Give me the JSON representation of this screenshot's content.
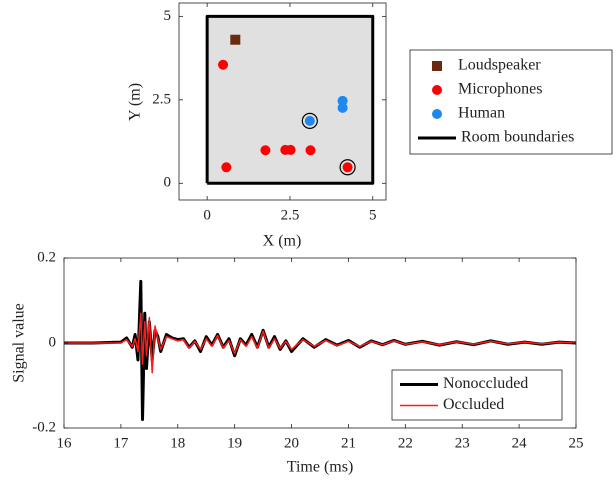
{
  "chart_data": [
    {
      "type": "scatter",
      "xlabel": "X (m)",
      "ylabel": "Y (m)",
      "xlim": [
        -0.85,
        5.4
      ],
      "ylim": [
        -0.5,
        5.4
      ],
      "xticks": [
        0,
        2.5,
        5
      ],
      "yticks": [
        0,
        2.5,
        5
      ],
      "legend": "right",
      "series": [
        {
          "name": "Loudspeaker",
          "color": "#6b2a0f",
          "marker": "square",
          "x": [
            0.85
          ],
          "values": [
            4.3
          ],
          "outlined": [
            false
          ]
        },
        {
          "name": "Microphones",
          "color": "#ff0000",
          "marker": "circle",
          "x": [
            0.48,
            0.58,
            1.76,
            2.36,
            2.52,
            3.12,
            4.24
          ],
          "values": [
            3.55,
            0.48,
            0.99,
            1.0,
            1.0,
            0.99,
            0.48
          ],
          "outlined": [
            false,
            false,
            false,
            false,
            false,
            false,
            true
          ]
        },
        {
          "name": "Human",
          "color": "#1e88f0",
          "marker": "circle",
          "x": [
            4.09,
            4.09,
            3.1
          ],
          "values": [
            2.47,
            2.26,
            1.87
          ],
          "outlined": [
            false,
            false,
            true
          ]
        },
        {
          "name": "Room boundaries",
          "color": "#000000",
          "fill": "#e0e0e0",
          "line_width": 3,
          "x": [
            0,
            5,
            5,
            0,
            0
          ],
          "values": [
            0,
            0,
            5,
            5,
            0
          ]
        }
      ]
    },
    {
      "type": "line",
      "xlabel": "Time (ms)",
      "ylabel": "Signal value",
      "xlim": [
        16,
        25
      ],
      "ylim": [
        -0.2,
        0.2
      ],
      "xticks": [
        16,
        17,
        18,
        19,
        20,
        21,
        22,
        23,
        24,
        25
      ],
      "yticks": [
        -0.2,
        0,
        0.2
      ],
      "legend": "southeast",
      "x": [
        16,
        16.5,
        17,
        17.1,
        17.2,
        17.25,
        17.3,
        17.35,
        17.38,
        17.42,
        17.45,
        17.5,
        17.55,
        17.6,
        17.65,
        17.7,
        17.8,
        17.9,
        18.0,
        18.1,
        18.2,
        18.3,
        18.4,
        18.5,
        18.6,
        18.7,
        18.8,
        18.9,
        19.0,
        19.1,
        19.2,
        19.3,
        19.4,
        19.5,
        19.6,
        19.7,
        19.8,
        19.9,
        20.0,
        20.2,
        20.4,
        20.6,
        20.8,
        21.0,
        21.2,
        21.4,
        21.6,
        21.8,
        22.0,
        22.3,
        22.6,
        22.9,
        23.2,
        23.5,
        23.8,
        24.1,
        24.4,
        24.7,
        25
      ],
      "series": [
        {
          "name": "Nonoccluded",
          "color": "#000000",
          "line_width": 3,
          "values": [
            0,
            0,
            0.002,
            0.012,
            -0.01,
            0.02,
            -0.04,
            0.145,
            -0.18,
            0.07,
            -0.06,
            0.05,
            -0.04,
            0.03,
            0.015,
            -0.02,
            0.02,
            0.012,
            0.008,
            0.01,
            -0.01,
            0.005,
            -0.02,
            0.015,
            -0.005,
            0.02,
            -0.01,
            0.01,
            -0.03,
            0.01,
            -0.005,
            0.02,
            -0.01,
            0.03,
            -0.01,
            0.015,
            -0.015,
            0.005,
            -0.02,
            0.01,
            -0.01,
            0.008,
            -0.005,
            0.006,
            -0.01,
            0.005,
            -0.004,
            0.006,
            -0.003,
            0.004,
            -0.005,
            0.003,
            -0.004,
            0.005,
            -0.003,
            0.002,
            -0.003,
            0.002,
            0
          ]
        },
        {
          "name": "Occluded",
          "color": "#ff1a1a",
          "line_width": 1.5,
          "values": [
            0,
            0,
            0,
            0.008,
            -0.008,
            0.01,
            -0.02,
            0.07,
            -0.05,
            0.05,
            -0.03,
            0.06,
            -0.07,
            0.04,
            0.01,
            -0.015,
            0.015,
            0.01,
            0.005,
            0.008,
            -0.012,
            0.004,
            -0.015,
            0.01,
            -0.008,
            0.018,
            -0.012,
            0.006,
            -0.025,
            0.008,
            -0.008,
            0.015,
            -0.012,
            0.028,
            -0.012,
            0.01,
            -0.012,
            0.004,
            -0.015,
            0.008,
            -0.008,
            0.006,
            -0.006,
            0.004,
            -0.008,
            0.004,
            -0.004,
            0.005,
            -0.003,
            0.003,
            -0.004,
            0.003,
            -0.003,
            0.004,
            -0.002,
            0.002,
            -0.002,
            0.002,
            0
          ]
        }
      ]
    }
  ]
}
